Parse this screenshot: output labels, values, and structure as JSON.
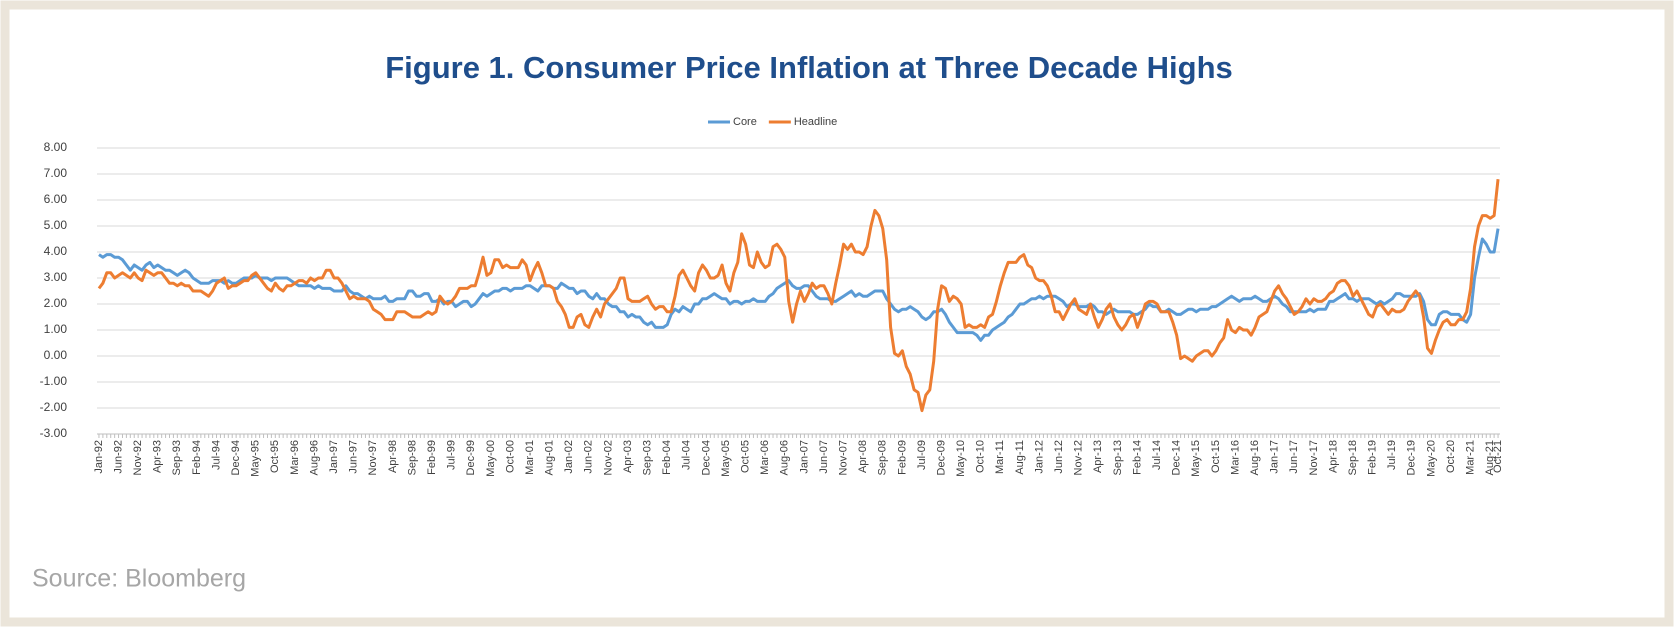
{
  "chart_data": {
    "type": "line",
    "title": "Figure 1. Consumer Price Inflation at Three Decade Highs",
    "categories": [
      "Jan-92",
      null,
      null,
      null,
      null,
      "Jun-92",
      null,
      null,
      null,
      null,
      "Nov-92",
      null,
      null,
      null,
      null,
      "Apr-93",
      null,
      null,
      null,
      null,
      "Sep-93",
      null,
      null,
      null,
      null,
      "Feb-94",
      null,
      null,
      null,
      null,
      "Jul-94",
      null,
      null,
      null,
      null,
      "Dec-94",
      null,
      null,
      null,
      null,
      "May-95",
      null,
      null,
      null,
      null,
      "Oct-95",
      null,
      null,
      null,
      null,
      "Mar-96",
      null,
      null,
      null,
      null,
      "Aug-96",
      null,
      null,
      null,
      null,
      "Jan-97",
      null,
      null,
      null,
      null,
      "Jun-97",
      null,
      null,
      null,
      null,
      "Nov-97",
      null,
      null,
      null,
      null,
      "Apr-98",
      null,
      null,
      null,
      null,
      "Sep-98",
      null,
      null,
      null,
      null,
      "Feb-99",
      null,
      null,
      null,
      null,
      "Jul-99",
      null,
      null,
      null,
      null,
      "Dec-99",
      null,
      null,
      null,
      null,
      "May-00",
      null,
      null,
      null,
      null,
      "Oct-00",
      null,
      null,
      null,
      null,
      "Mar-01",
      null,
      null,
      null,
      null,
      "Aug-01",
      null,
      null,
      null,
      null,
      "Jan-02",
      null,
      null,
      null,
      null,
      "Jun-02",
      null,
      null,
      null,
      null,
      "Nov-02",
      null,
      null,
      null,
      null,
      "Apr-03",
      null,
      null,
      null,
      null,
      "Sep-03",
      null,
      null,
      null,
      null,
      "Feb-04",
      null,
      null,
      null,
      null,
      "Jul-04",
      null,
      null,
      null,
      null,
      "Dec-04",
      null,
      null,
      null,
      null,
      "May-05",
      null,
      null,
      null,
      null,
      "Oct-05",
      null,
      null,
      null,
      null,
      "Mar-06",
      null,
      null,
      null,
      null,
      "Aug-06",
      null,
      null,
      null,
      null,
      "Jan-07",
      null,
      null,
      null,
      null,
      "Jun-07",
      null,
      null,
      null,
      null,
      "Nov-07",
      null,
      null,
      null,
      null,
      "Apr-08",
      null,
      null,
      null,
      null,
      "Sep-08",
      null,
      null,
      null,
      null,
      "Feb-09",
      null,
      null,
      null,
      null,
      "Jul-09",
      null,
      null,
      null,
      null,
      "Dec-09",
      null,
      null,
      null,
      null,
      "May-10",
      null,
      null,
      null,
      null,
      "Oct-10",
      null,
      null,
      null,
      null,
      "Mar-11",
      null,
      null,
      null,
      null,
      "Aug-11",
      null,
      null,
      null,
      null,
      "Jan-12",
      null,
      null,
      null,
      null,
      "Jun-12",
      null,
      null,
      null,
      null,
      "Nov-12",
      null,
      null,
      null,
      null,
      "Apr-13",
      null,
      null,
      null,
      null,
      "Sep-13",
      null,
      null,
      null,
      null,
      "Feb-14",
      null,
      null,
      null,
      null,
      "Jul-14",
      null,
      null,
      null,
      null,
      "Dec-14",
      null,
      null,
      null,
      null,
      "May-15",
      null,
      null,
      null,
      null,
      "Oct-15",
      null,
      null,
      null,
      null,
      "Mar-16",
      null,
      null,
      null,
      null,
      "Aug-16",
      null,
      null,
      null,
      null,
      "Jan-17",
      null,
      null,
      null,
      null,
      "Jun-17",
      null,
      null,
      null,
      null,
      "Nov-17",
      null,
      null,
      null,
      null,
      "Apr-18",
      null,
      null,
      null,
      null,
      "Sep-18",
      null,
      null,
      null,
      null,
      "Feb-19",
      null,
      null,
      null,
      null,
      "Jul-19",
      null,
      null,
      null,
      null,
      "Dec-19",
      null,
      null,
      null,
      null,
      "May-20",
      null,
      null,
      null,
      null,
      "Oct-20",
      null,
      null,
      null,
      null,
      "Mar-21",
      null,
      null,
      null,
      null,
      "Aug-21",
      null,
      "Oct-21"
    ],
    "series": [
      {
        "name": "Core",
        "color": "#5b9bd5",
        "values": [
          3.9,
          3.8,
          3.9,
          3.9,
          3.8,
          3.8,
          3.7,
          3.5,
          3.3,
          3.5,
          3.4,
          3.3,
          3.5,
          3.6,
          3.4,
          3.5,
          3.4,
          3.3,
          3.3,
          3.2,
          3.1,
          3.2,
          3.3,
          3.2,
          3.0,
          2.9,
          2.8,
          2.8,
          2.8,
          2.9,
          2.9,
          2.9,
          2.8,
          2.9,
          2.8,
          2.8,
          2.9,
          3.0,
          3.0,
          3.0,
          3.1,
          3.0,
          3.0,
          3.0,
          2.9,
          3.0,
          3.0,
          3.0,
          3.0,
          2.9,
          2.8,
          2.7,
          2.7,
          2.7,
          2.7,
          2.6,
          2.7,
          2.6,
          2.6,
          2.6,
          2.5,
          2.5,
          2.5,
          2.7,
          2.5,
          2.4,
          2.4,
          2.3,
          2.2,
          2.3,
          2.2,
          2.2,
          2.2,
          2.3,
          2.1,
          2.1,
          2.2,
          2.2,
          2.2,
          2.5,
          2.5,
          2.3,
          2.3,
          2.4,
          2.4,
          2.1,
          2.1,
          2.2,
          2.0,
          2.1,
          2.1,
          1.9,
          2.0,
          2.1,
          2.1,
          1.9,
          2.0,
          2.2,
          2.4,
          2.3,
          2.4,
          2.5,
          2.5,
          2.6,
          2.6,
          2.5,
          2.6,
          2.6,
          2.6,
          2.7,
          2.7,
          2.6,
          2.5,
          2.7,
          2.7,
          2.7,
          2.6,
          2.6,
          2.8,
          2.7,
          2.6,
          2.6,
          2.4,
          2.5,
          2.5,
          2.3,
          2.2,
          2.4,
          2.2,
          2.2,
          2.0,
          1.9,
          1.9,
          1.7,
          1.7,
          1.5,
          1.6,
          1.5,
          1.5,
          1.3,
          1.2,
          1.3,
          1.1,
          1.1,
          1.1,
          1.2,
          1.6,
          1.8,
          1.7,
          1.9,
          1.8,
          1.7,
          2.0,
          2.0,
          2.2,
          2.2,
          2.3,
          2.4,
          2.3,
          2.2,
          2.2,
          2.0,
          2.1,
          2.1,
          2.0,
          2.1,
          2.1,
          2.2,
          2.1,
          2.1,
          2.1,
          2.3,
          2.4,
          2.6,
          2.7,
          2.8,
          2.9,
          2.7,
          2.6,
          2.6,
          2.7,
          2.7,
          2.5,
          2.3,
          2.2,
          2.2,
          2.2,
          2.1,
          2.1,
          2.2,
          2.3,
          2.4,
          2.5,
          2.3,
          2.4,
          2.3,
          2.3,
          2.4,
          2.5,
          2.5,
          2.5,
          2.2,
          2.0,
          1.8,
          1.7,
          1.8,
          1.8,
          1.9,
          1.8,
          1.7,
          1.5,
          1.4,
          1.5,
          1.7,
          1.7,
          1.8,
          1.6,
          1.3,
          1.1,
          0.9,
          0.9,
          0.9,
          0.9,
          0.9,
          0.8,
          0.6,
          0.8,
          0.8,
          1.0,
          1.1,
          1.2,
          1.3,
          1.5,
          1.6,
          1.8,
          2.0,
          2.0,
          2.1,
          2.2,
          2.2,
          2.3,
          2.2,
          2.3,
          2.3,
          2.3,
          2.2,
          2.1,
          1.9,
          2.0,
          2.0,
          1.9,
          1.9,
          1.9,
          2.0,
          1.9,
          1.7,
          1.7,
          1.6,
          1.7,
          1.8,
          1.7,
          1.7,
          1.7,
          1.7,
          1.6,
          1.6,
          1.7,
          1.8,
          2.0,
          1.9,
          1.9,
          1.7,
          1.7,
          1.8,
          1.7,
          1.6,
          1.6,
          1.7,
          1.8,
          1.8,
          1.7,
          1.8,
          1.8,
          1.8,
          1.9,
          1.9,
          2.0,
          2.1,
          2.2,
          2.3,
          2.2,
          2.1,
          2.2,
          2.2,
          2.2,
          2.3,
          2.2,
          2.1,
          2.1,
          2.2,
          2.3,
          2.2,
          2.0,
          1.9,
          1.7,
          1.7,
          1.7,
          1.7,
          1.7,
          1.8,
          1.7,
          1.8,
          1.8,
          1.8,
          2.1,
          2.1,
          2.2,
          2.3,
          2.4,
          2.2,
          2.2,
          2.1,
          2.2,
          2.2,
          2.2,
          2.1,
          2.0,
          2.1,
          2.0,
          2.1,
          2.2,
          2.4,
          2.4,
          2.3,
          2.3,
          2.3,
          2.3,
          2.4,
          2.1,
          1.4,
          1.2,
          1.2,
          1.6,
          1.7,
          1.7,
          1.6,
          1.6,
          1.6,
          1.4,
          1.3,
          1.6,
          3.0,
          3.8,
          4.5,
          4.3,
          4.0,
          4.0,
          4.9
        ]
      },
      {
        "name": "Headline",
        "color": "#ed7d31",
        "values": [
          2.6,
          2.8,
          3.2,
          3.2,
          3.0,
          3.1,
          3.2,
          3.1,
          3.0,
          3.2,
          3.0,
          2.9,
          3.3,
          3.2,
          3.1,
          3.2,
          3.2,
          3.0,
          2.8,
          2.8,
          2.7,
          2.8,
          2.7,
          2.7,
          2.5,
          2.5,
          2.5,
          2.4,
          2.3,
          2.5,
          2.8,
          2.9,
          3.0,
          2.6,
          2.7,
          2.7,
          2.8,
          2.9,
          2.9,
          3.1,
          3.2,
          3.0,
          2.8,
          2.6,
          2.5,
          2.8,
          2.6,
          2.5,
          2.7,
          2.7,
          2.8,
          2.9,
          2.9,
          2.8,
          3.0,
          2.9,
          3.0,
          3.0,
          3.3,
          3.3,
          3.0,
          3.0,
          2.8,
          2.5,
          2.2,
          2.3,
          2.2,
          2.2,
          2.2,
          2.1,
          1.8,
          1.7,
          1.6,
          1.4,
          1.4,
          1.4,
          1.7,
          1.7,
          1.7,
          1.6,
          1.5,
          1.5,
          1.5,
          1.6,
          1.7,
          1.6,
          1.7,
          2.3,
          2.1,
          2.0,
          2.1,
          2.3,
          2.6,
          2.6,
          2.6,
          2.7,
          2.7,
          3.2,
          3.8,
          3.1,
          3.2,
          3.7,
          3.7,
          3.4,
          3.5,
          3.4,
          3.4,
          3.4,
          3.7,
          3.5,
          2.9,
          3.3,
          3.6,
          3.2,
          2.7,
          2.7,
          2.6,
          2.1,
          1.9,
          1.6,
          1.1,
          1.1,
          1.5,
          1.6,
          1.2,
          1.1,
          1.5,
          1.8,
          1.5,
          2.0,
          2.2,
          2.4,
          2.6,
          3.0,
          3.0,
          2.2,
          2.1,
          2.1,
          2.1,
          2.2,
          2.3,
          2.0,
          1.8,
          1.9,
          1.9,
          1.7,
          1.7,
          2.3,
          3.1,
          3.3,
          3.0,
          2.7,
          2.5,
          3.2,
          3.5,
          3.3,
          3.0,
          3.0,
          3.1,
          3.5,
          2.8,
          2.5,
          3.2,
          3.6,
          4.7,
          4.3,
          3.5,
          3.4,
          4.0,
          3.6,
          3.4,
          3.5,
          4.2,
          4.3,
          4.1,
          3.8,
          2.1,
          1.3,
          2.0,
          2.5,
          2.1,
          2.4,
          2.8,
          2.6,
          2.7,
          2.7,
          2.4,
          2.0,
          2.8,
          3.5,
          4.3,
          4.1,
          4.3,
          4.0,
          4.0,
          3.9,
          4.2,
          5.0,
          5.6,
          5.4,
          4.9,
          3.7,
          1.1,
          0.1,
          0.0,
          0.2,
          -0.4,
          -0.7,
          -1.3,
          -1.4,
          -2.1,
          -1.5,
          -1.3,
          -0.2,
          1.8,
          2.7,
          2.6,
          2.1,
          2.3,
          2.2,
          2.0,
          1.1,
          1.2,
          1.1,
          1.1,
          1.2,
          1.1,
          1.5,
          1.6,
          2.1,
          2.7,
          3.2,
          3.6,
          3.6,
          3.6,
          3.8,
          3.9,
          3.5,
          3.4,
          3.0,
          2.9,
          2.9,
          2.7,
          2.3,
          1.7,
          1.7,
          1.4,
          1.7,
          2.0,
          2.2,
          1.8,
          1.7,
          1.6,
          2.0,
          1.5,
          1.1,
          1.4,
          1.8,
          2.0,
          1.5,
          1.2,
          1.0,
          1.2,
          1.5,
          1.6,
          1.1,
          1.5,
          2.0,
          2.1,
          2.1,
          2.0,
          1.7,
          1.7,
          1.7,
          1.3,
          0.8,
          -0.1,
          0.0,
          -0.1,
          -0.2,
          0.0,
          0.1,
          0.2,
          0.2,
          0.0,
          0.2,
          0.5,
          0.7,
          1.4,
          1.0,
          0.9,
          1.1,
          1.0,
          1.0,
          0.8,
          1.1,
          1.5,
          1.6,
          1.7,
          2.1,
          2.5,
          2.7,
          2.4,
          2.2,
          1.9,
          1.6,
          1.7,
          1.9,
          2.2,
          2.0,
          2.2,
          2.1,
          2.1,
          2.2,
          2.4,
          2.5,
          2.8,
          2.9,
          2.9,
          2.7,
          2.3,
          2.5,
          2.2,
          1.9,
          1.6,
          1.5,
          1.9,
          2.0,
          1.8,
          1.6,
          1.8,
          1.7,
          1.7,
          1.8,
          2.1,
          2.3,
          2.5,
          2.3,
          1.5,
          0.3,
          0.1,
          0.6,
          1.0,
          1.3,
          1.4,
          1.2,
          1.2,
          1.4,
          1.4,
          1.7,
          2.6,
          4.2,
          5.0,
          5.4,
          5.4,
          5.3,
          5.4,
          6.8
        ]
      }
    ],
    "ylim": [
      -3,
      8
    ],
    "yticks": [
      {
        "value": -3,
        "label": "-3.00"
      },
      {
        "value": -2,
        "label": "-2.00"
      },
      {
        "value": -1,
        "label": "-1.00"
      },
      {
        "value": 0,
        "label": "0.00"
      },
      {
        "value": 1,
        "label": "1.00"
      },
      {
        "value": 2,
        "label": "2.00"
      },
      {
        "value": 3,
        "label": "3.00"
      },
      {
        "value": 4,
        "label": "4.00"
      },
      {
        "value": 5,
        "label": "5.00"
      },
      {
        "value": 6,
        "label": "6.00"
      },
      {
        "value": 7,
        "label": "7.00"
      },
      {
        "value": 8,
        "label": "8.00"
      }
    ],
    "grid": true,
    "legend": "top"
  },
  "source": "Source: Bloomberg"
}
